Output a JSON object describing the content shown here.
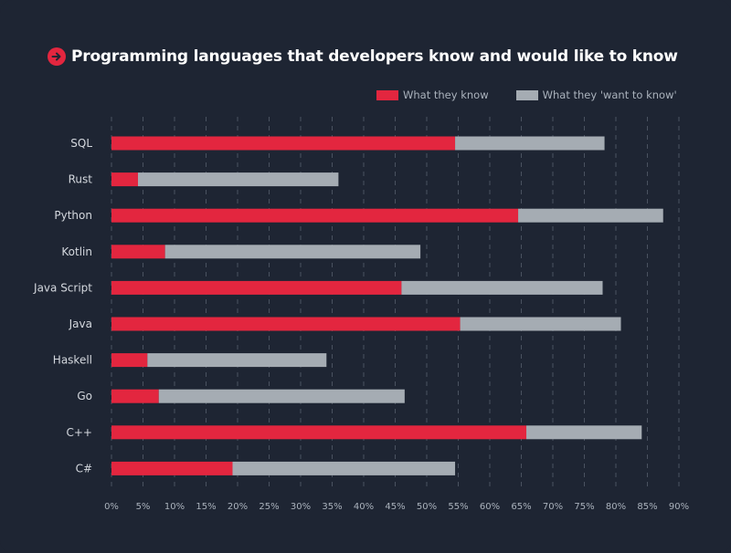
{
  "title": "Programming languages that developers know and would like to know",
  "chart_data": {
    "type": "bar",
    "orientation": "horizontal",
    "stacked": true,
    "categories": [
      "SQL",
      "Rust",
      "Python",
      "Kotlin",
      "Java Script",
      "Java",
      "Haskell",
      "Go",
      "C++",
      "C#"
    ],
    "series": [
      {
        "name": "What they know",
        "color": "#e3263f",
        "values": [
          54.5,
          4.2,
          64.5,
          8.5,
          46,
          55.3,
          5.7,
          7.5,
          65.8,
          19.2
        ]
      },
      {
        "name": "What they 'want to know'",
        "color": "#a5acb3",
        "values": [
          23.7,
          31.8,
          23,
          40.5,
          31.9,
          25.5,
          28.4,
          39,
          18.3,
          35.3
        ]
      }
    ],
    "xticks": [
      "0%",
      "5%",
      "10%",
      "15%",
      "20%",
      "25%",
      "30%",
      "35%",
      "40%",
      "45%",
      "50%",
      "55%",
      "60%",
      "65%",
      "70%",
      "75%",
      "80%",
      "85%",
      "90%"
    ],
    "xlim": [
      0,
      90
    ],
    "grid": true,
    "legend": "top-right"
  }
}
